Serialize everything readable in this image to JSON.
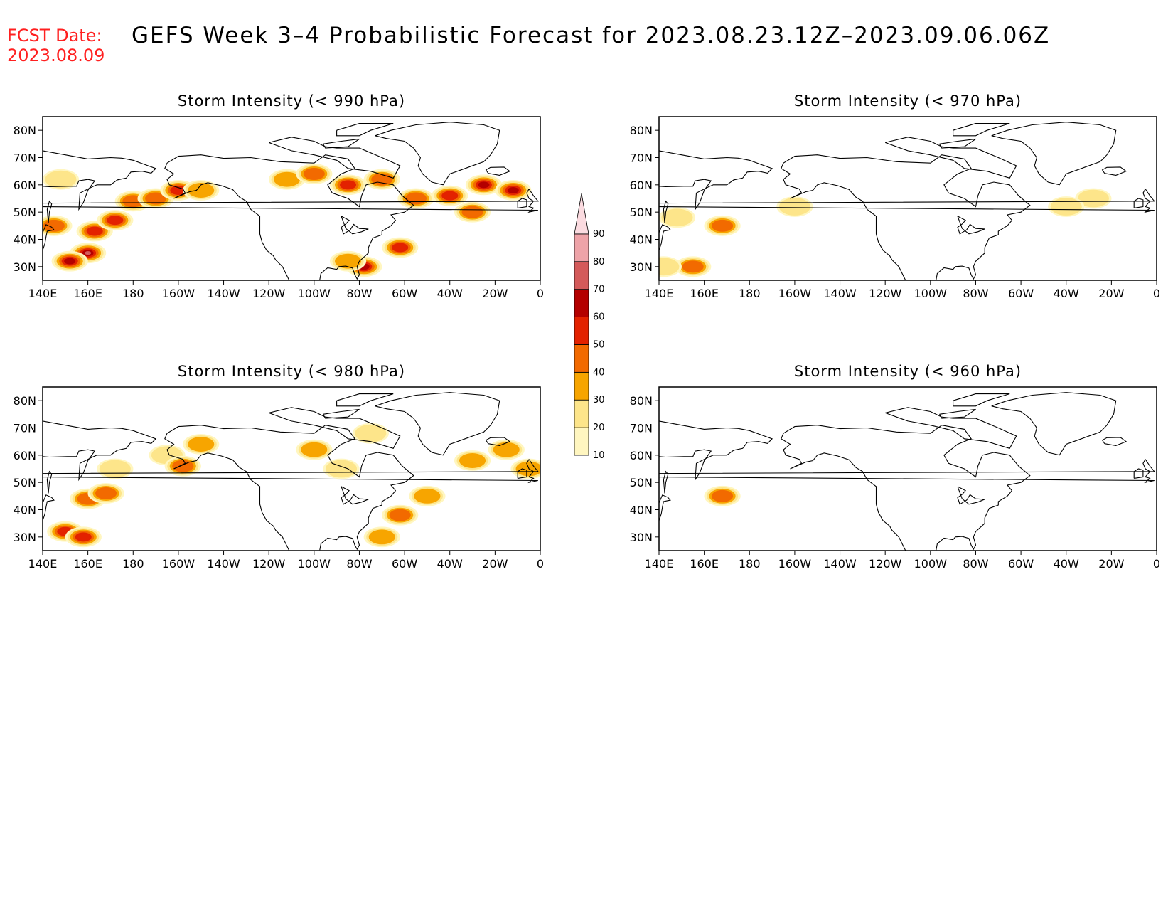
{
  "header": {
    "fcst_label": "FCST Date:",
    "fcst_date": "2023.08.09",
    "title": "GEFS Week 3–4 Probabilistic Forecast for 2023.08.23.12Z–2023.09.06.06Z"
  },
  "lat_labels": [
    "80N",
    "70N",
    "60N",
    "50N",
    "40N",
    "30N"
  ],
  "lon_labels": [
    "140E",
    "160E",
    "180",
    "160W",
    "140W",
    "120W",
    "100W",
    "80W",
    "60W",
    "40W",
    "20W",
    "0"
  ],
  "colorbar": {
    "levels": [
      "10",
      "20",
      "30",
      "40",
      "50",
      "60",
      "70",
      "80",
      "90"
    ],
    "colors": [
      "#fff6c0",
      "#fde58a",
      "#f7a500",
      "#f26a00",
      "#e32200",
      "#b40000",
      "#d45a5a",
      "#eea3a8",
      "#fbdbe0"
    ]
  },
  "panels": [
    {
      "title": "Storm Intensity (< 990 hPa)",
      "blobs": [
        {
          "lon": 160,
          "lat": 35,
          "level": 7
        },
        {
          "lon": 152,
          "lat": 32,
          "level": 5
        },
        {
          "lon": 145,
          "lat": 45,
          "level": 3
        },
        {
          "lon": 163,
          "lat": 43,
          "level": 4
        },
        {
          "lon": 172,
          "lat": 47,
          "level": 4
        },
        {
          "lon": 180,
          "lat": 54,
          "level": 3
        },
        {
          "lon": -170,
          "lat": 55,
          "level": 3
        },
        {
          "lon": -160,
          "lat": 58,
          "level": 4
        },
        {
          "lon": -150,
          "lat": 58,
          "level": 2
        },
        {
          "lon": 148,
          "lat": 62,
          "level": 1
        },
        {
          "lon": -112,
          "lat": 62,
          "level": 2
        },
        {
          "lon": -100,
          "lat": 64,
          "level": 3
        },
        {
          "lon": -85,
          "lat": 60,
          "level": 4
        },
        {
          "lon": -70,
          "lat": 62,
          "level": 3
        },
        {
          "lon": -55,
          "lat": 55,
          "level": 3
        },
        {
          "lon": -40,
          "lat": 56,
          "level": 4
        },
        {
          "lon": -25,
          "lat": 60,
          "level": 5
        },
        {
          "lon": -12,
          "lat": 58,
          "level": 5
        },
        {
          "lon": -62,
          "lat": 37,
          "level": 4
        },
        {
          "lon": -78,
          "lat": 30,
          "level": 5
        },
        {
          "lon": -85,
          "lat": 32,
          "level": 2
        },
        {
          "lon": -30,
          "lat": 50,
          "level": 3
        }
      ]
    },
    {
      "title": "Storm Intensity (< 980 hPa)",
      "blobs": [
        {
          "lon": 150,
          "lat": 32,
          "level": 4
        },
        {
          "lon": 158,
          "lat": 30,
          "level": 4
        },
        {
          "lon": 160,
          "lat": 44,
          "level": 3
        },
        {
          "lon": 168,
          "lat": 46,
          "level": 3
        },
        {
          "lon": 172,
          "lat": 55,
          "level": 1
        },
        {
          "lon": -165,
          "lat": 60,
          "level": 1
        },
        {
          "lon": -158,
          "lat": 56,
          "level": 3
        },
        {
          "lon": -150,
          "lat": 64,
          "level": 2
        },
        {
          "lon": -100,
          "lat": 62,
          "level": 2
        },
        {
          "lon": -88,
          "lat": 55,
          "level": 1
        },
        {
          "lon": -62,
          "lat": 38,
          "level": 3
        },
        {
          "lon": -50,
          "lat": 45,
          "level": 2
        },
        {
          "lon": -70,
          "lat": 30,
          "level": 2
        },
        {
          "lon": -30,
          "lat": 58,
          "level": 2
        },
        {
          "lon": -15,
          "lat": 62,
          "level": 2
        },
        {
          "lon": -5,
          "lat": 55,
          "level": 2
        },
        {
          "lon": -75,
          "lat": 68,
          "level": 1
        }
      ]
    },
    {
      "title": "Storm Intensity (< 970 hPa)",
      "blobs": [
        {
          "lon": 168,
          "lat": 45,
          "level": 3
        },
        {
          "lon": 155,
          "lat": 30,
          "level": 3
        },
        {
          "lon": 142,
          "lat": 30,
          "level": 1
        },
        {
          "lon": 148,
          "lat": 48,
          "level": 1
        },
        {
          "lon": -160,
          "lat": 52,
          "level": 1
        },
        {
          "lon": -28,
          "lat": 55,
          "level": 1
        },
        {
          "lon": -40,
          "lat": 52,
          "level": 1
        }
      ]
    },
    {
      "title": "Storm Intensity (< 960 hPa)",
      "blobs": [
        {
          "lon": 168,
          "lat": 45,
          "level": 3
        }
      ]
    }
  ]
}
